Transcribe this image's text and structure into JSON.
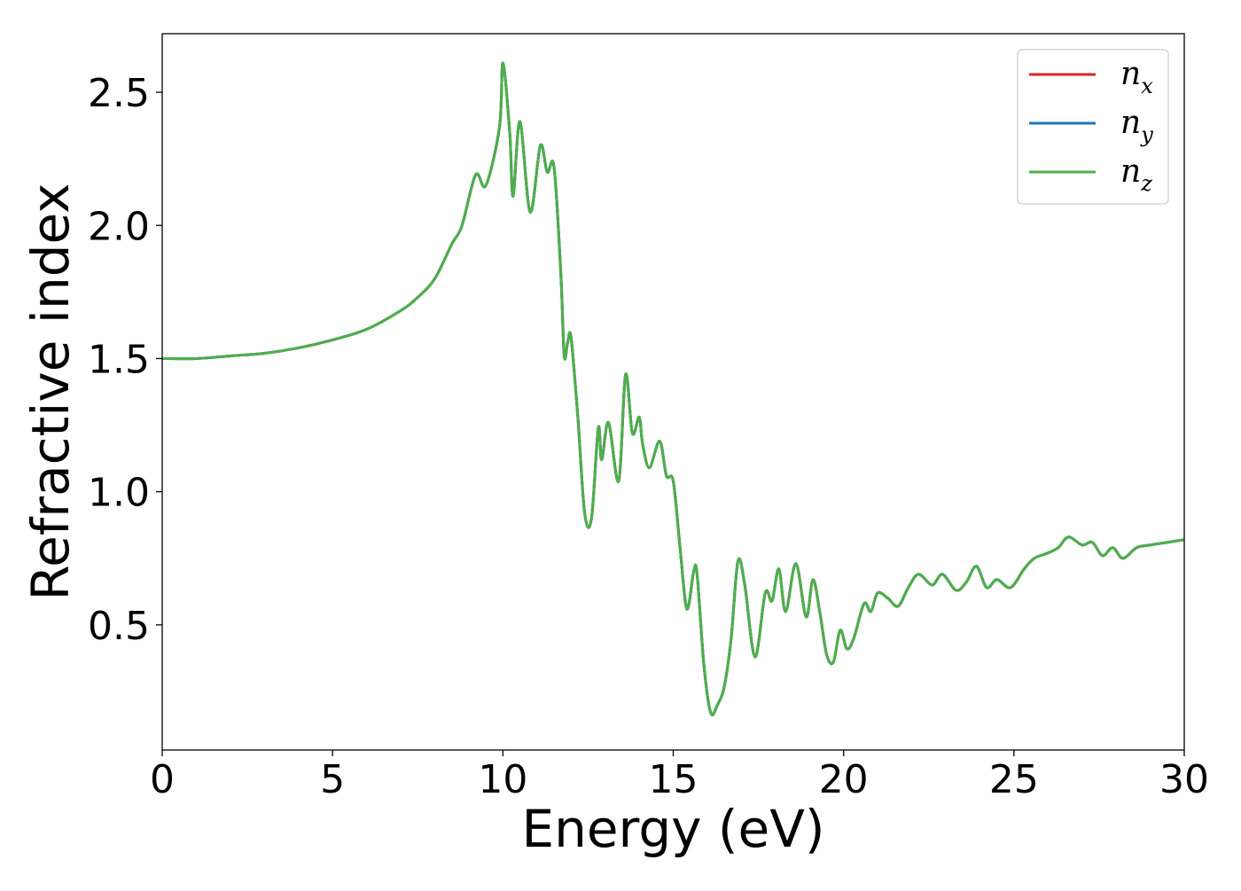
{
  "chart_data": {
    "type": "line",
    "title": "",
    "xlabel": "Energy (eV)",
    "ylabel": "Refractive index",
    "xlim": [
      0,
      30
    ],
    "ylim": [
      0.03,
      2.72
    ],
    "xticks": [
      0,
      5,
      10,
      15,
      20,
      25,
      30
    ],
    "xtick_labels": [
      "0",
      "5",
      "10",
      "15",
      "20",
      "25",
      "30"
    ],
    "yticks": [
      0.5,
      1.0,
      1.5,
      2.0,
      2.5
    ],
    "ytick_labels": [
      "0.5",
      "1.0",
      "1.5",
      "2.0",
      "2.5"
    ],
    "grid": false,
    "legend_position": "top-right",
    "x": [
      0,
      1,
      2,
      3,
      4,
      5,
      6,
      7,
      7.5,
      8,
      8.5,
      8.8,
      9.2,
      9.5,
      9.9,
      10.0,
      10.2,
      10.3,
      10.5,
      10.8,
      11.1,
      11.3,
      11.5,
      11.7,
      11.8,
      11.9,
      12.0,
      12.2,
      12.4,
      12.6,
      12.8,
      12.9,
      13.1,
      13.4,
      13.6,
      13.8,
      14.0,
      14.1,
      14.3,
      14.6,
      14.8,
      15.0,
      15.2,
      15.4,
      15.6,
      15.7,
      15.9,
      16.1,
      16.3,
      16.5,
      16.7,
      16.9,
      17.1,
      17.4,
      17.7,
      17.9,
      18.1,
      18.3,
      18.6,
      18.9,
      19.1,
      19.3,
      19.5,
      19.7,
      19.9,
      20.1,
      20.3,
      20.6,
      20.8,
      21.0,
      21.3,
      21.6,
      21.9,
      22.2,
      22.6,
      22.9,
      23.3,
      23.6,
      23.9,
      24.2,
      24.5,
      24.9,
      25.3,
      25.6,
      26.0,
      26.3,
      26.6,
      27.0,
      27.3,
      27.6,
      27.9,
      28.2,
      28.6,
      29.0,
      29.5,
      30.0
    ],
    "series": [
      {
        "name": "n_x",
        "color": "#d62728",
        "values": [
          1.5,
          1.5,
          1.51,
          1.52,
          1.54,
          1.57,
          1.61,
          1.68,
          1.73,
          1.8,
          1.93,
          2.0,
          2.19,
          2.15,
          2.37,
          2.61,
          2.35,
          2.11,
          2.39,
          2.05,
          2.3,
          2.2,
          2.22,
          1.82,
          1.51,
          1.56,
          1.58,
          1.28,
          0.92,
          0.9,
          1.24,
          1.12,
          1.26,
          1.04,
          1.44,
          1.22,
          1.28,
          1.18,
          1.09,
          1.19,
          1.06,
          1.04,
          0.79,
          0.56,
          0.7,
          0.69,
          0.35,
          0.17,
          0.2,
          0.27,
          0.45,
          0.74,
          0.65,
          0.38,
          0.62,
          0.59,
          0.71,
          0.55,
          0.73,
          0.53,
          0.67,
          0.55,
          0.39,
          0.36,
          0.48,
          0.41,
          0.45,
          0.58,
          0.55,
          0.62,
          0.6,
          0.57,
          0.64,
          0.69,
          0.65,
          0.69,
          0.63,
          0.66,
          0.72,
          0.64,
          0.67,
          0.64,
          0.71,
          0.75,
          0.77,
          0.79,
          0.83,
          0.8,
          0.81,
          0.76,
          0.79,
          0.75,
          0.79,
          0.8,
          0.81,
          0.82
        ]
      },
      {
        "name": "n_y",
        "color": "#1f77b4",
        "values": [
          1.5,
          1.5,
          1.51,
          1.52,
          1.54,
          1.57,
          1.61,
          1.68,
          1.73,
          1.8,
          1.93,
          2.0,
          2.19,
          2.15,
          2.37,
          2.61,
          2.35,
          2.11,
          2.39,
          2.05,
          2.3,
          2.2,
          2.22,
          1.82,
          1.51,
          1.56,
          1.58,
          1.28,
          0.92,
          0.9,
          1.24,
          1.12,
          1.26,
          1.04,
          1.44,
          1.22,
          1.28,
          1.18,
          1.09,
          1.19,
          1.06,
          1.04,
          0.79,
          0.56,
          0.7,
          0.69,
          0.35,
          0.17,
          0.2,
          0.27,
          0.45,
          0.74,
          0.65,
          0.38,
          0.62,
          0.59,
          0.71,
          0.55,
          0.73,
          0.53,
          0.67,
          0.55,
          0.39,
          0.36,
          0.48,
          0.41,
          0.45,
          0.58,
          0.55,
          0.62,
          0.6,
          0.57,
          0.64,
          0.69,
          0.65,
          0.69,
          0.63,
          0.66,
          0.72,
          0.64,
          0.67,
          0.64,
          0.71,
          0.75,
          0.77,
          0.79,
          0.83,
          0.8,
          0.81,
          0.76,
          0.79,
          0.75,
          0.79,
          0.8,
          0.81,
          0.82
        ]
      },
      {
        "name": "n_z",
        "color": "#4daf4a",
        "values": [
          1.5,
          1.5,
          1.51,
          1.52,
          1.54,
          1.57,
          1.61,
          1.68,
          1.73,
          1.8,
          1.93,
          2.0,
          2.19,
          2.15,
          2.37,
          2.61,
          2.35,
          2.11,
          2.39,
          2.05,
          2.3,
          2.2,
          2.22,
          1.82,
          1.51,
          1.56,
          1.58,
          1.28,
          0.92,
          0.9,
          1.24,
          1.12,
          1.26,
          1.04,
          1.44,
          1.22,
          1.28,
          1.18,
          1.09,
          1.19,
          1.06,
          1.04,
          0.79,
          0.56,
          0.7,
          0.69,
          0.35,
          0.17,
          0.2,
          0.27,
          0.45,
          0.74,
          0.65,
          0.38,
          0.62,
          0.59,
          0.71,
          0.55,
          0.73,
          0.53,
          0.67,
          0.55,
          0.39,
          0.36,
          0.48,
          0.41,
          0.45,
          0.58,
          0.55,
          0.62,
          0.6,
          0.57,
          0.64,
          0.69,
          0.65,
          0.69,
          0.63,
          0.66,
          0.72,
          0.64,
          0.67,
          0.64,
          0.71,
          0.75,
          0.77,
          0.79,
          0.83,
          0.8,
          0.81,
          0.76,
          0.79,
          0.75,
          0.79,
          0.8,
          0.81,
          0.82
        ]
      }
    ],
    "legend": [
      {
        "base": "n",
        "sub": "x"
      },
      {
        "base": "n",
        "sub": "y"
      },
      {
        "base": "n",
        "sub": "z"
      }
    ]
  }
}
